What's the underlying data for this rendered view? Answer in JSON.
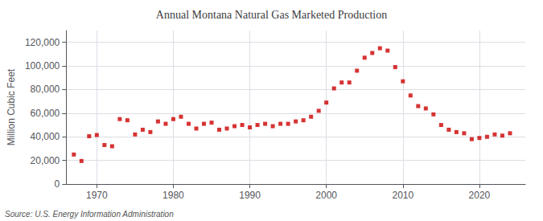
{
  "chart_data": {
    "type": "scatter",
    "title": "Annual Montana Natural Gas Marketed Production",
    "ylabel": "Million Cubic Feet",
    "annotation": "Source: U.S. Energy Information Administration",
    "color": "#cc0000",
    "marker": "square",
    "grid": true,
    "xlim": [
      1966,
      2026
    ],
    "xticks": [
      1970,
      1980,
      1990,
      2000,
      2010,
      2020
    ],
    "ylim": [
      0,
      130000
    ],
    "yticks": [
      0,
      {
        "value": 20000,
        "label": "20,000"
      },
      {
        "value": 40000,
        "label": "40,000"
      },
      {
        "value": 60000,
        "label": "60,000"
      },
      {
        "value": 80000,
        "label": "80,000"
      },
      {
        "value": 100000,
        "label": "100,000"
      },
      {
        "value": 120000,
        "label": "120,000"
      }
    ],
    "x": [
      1967,
      1968,
      1969,
      1970,
      1971,
      1972,
      1973,
      1974,
      1975,
      1976,
      1977,
      1978,
      1979,
      1980,
      1981,
      1982,
      1983,
      1984,
      1985,
      1986,
      1987,
      1988,
      1989,
      1990,
      1991,
      1992,
      1993,
      1994,
      1995,
      1996,
      1997,
      1998,
      1999,
      2000,
      2001,
      2002,
      2003,
      2004,
      2005,
      2006,
      2007,
      2008,
      2009,
      2010,
      2011,
      2012,
      2013,
      2014,
      2015,
      2016,
      2017,
      2018,
      2019,
      2020,
      2021,
      2022,
      2023,
      2024
    ],
    "values": [
      25000,
      19500,
      40500,
      41500,
      33000,
      32000,
      55000,
      54000,
      42000,
      46000,
      44000,
      53000,
      51000,
      55000,
      57000,
      51000,
      47000,
      51000,
      52000,
      46000,
      47000,
      49000,
      50000,
      48000,
      50000,
      51000,
      49000,
      51000,
      51000,
      53000,
      54000,
      57000,
      62000,
      69000,
      81000,
      86000,
      86000,
      96000,
      107000,
      111000,
      115000,
      113000,
      99000,
      87000,
      75000,
      66000,
      64000,
      59000,
      50000,
      46000,
      44000,
      43000,
      38000,
      39000,
      40000,
      42000,
      41000,
      43000
    ]
  }
}
